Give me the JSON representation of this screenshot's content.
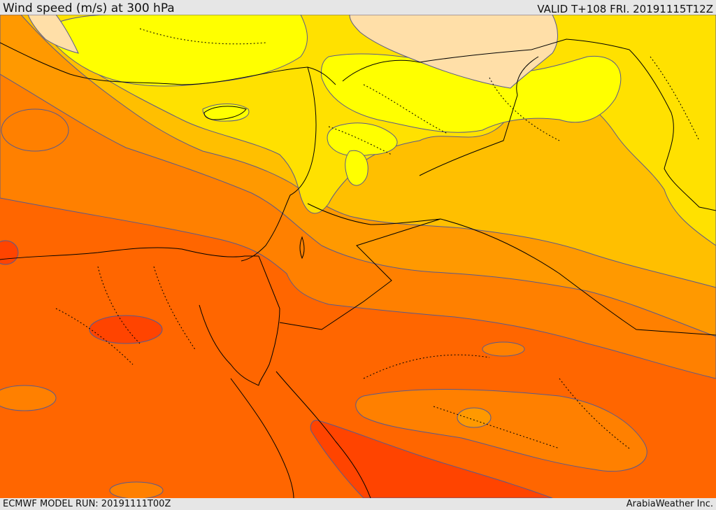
{
  "header": {
    "title": "Wind speed (m/s) at 300 hPa",
    "valid": "VALID T+108 FRI. 20191115T12Z"
  },
  "footer": {
    "model_run": "ECMWF MODEL RUN: 20191111T00Z",
    "credit": "ArabiaWeather Inc."
  },
  "colors": {
    "pale": "#ffdfa8",
    "bright_yellow": "#ffff00",
    "yellow": "#ffe100",
    "yellow_orange": "#ffbf00",
    "orange": "#ff9900",
    "dark_orange": "#ff8000",
    "red_orange": "#ff6600",
    "red": "#ff4400",
    "contour": "#5a5a8c",
    "border": "#000000"
  }
}
